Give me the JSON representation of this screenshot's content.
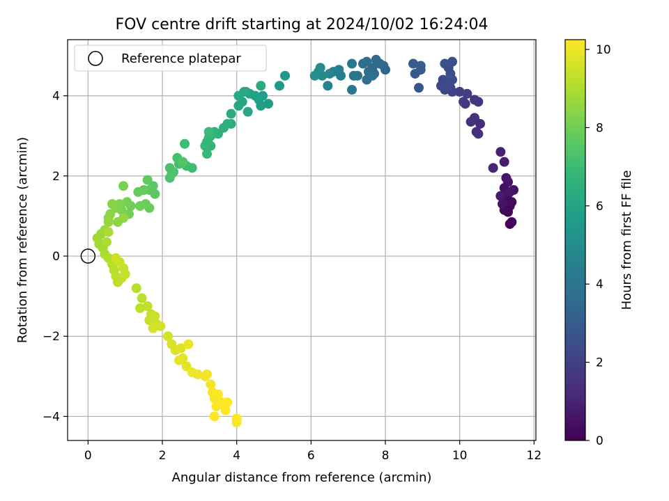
{
  "chart_data": {
    "type": "scatter",
    "title": "FOV centre drift starting at 2024/10/02 16:24:04",
    "xlabel": "Angular distance from reference (arcmin)",
    "ylabel": "Rotation from reference (arcmin)",
    "xlim": [
      -0.55,
      12.05
    ],
    "ylim": [
      -4.6,
      5.4
    ],
    "xticks": [
      "0",
      "2",
      "4",
      "6",
      "8",
      "10",
      "12"
    ],
    "yticks": [
      "−4",
      "−2",
      "0",
      "2",
      "4"
    ],
    "grid": true,
    "legend": {
      "position": "top-left",
      "entries": [
        "Reference platepar"
      ]
    },
    "reference_point": {
      "x": 0,
      "y": 0,
      "label": "Reference platepar"
    },
    "colorbar": {
      "label": "Hours from first FF file",
      "colormap": "viridis",
      "range": [
        0,
        10.25
      ],
      "ticks": [
        "0",
        "2",
        "4",
        "6",
        "8",
        "10"
      ]
    },
    "colormap_stops": [
      "#440154",
      "#482878",
      "#3e4989",
      "#31688e",
      "#26828e",
      "#1f9e89",
      "#35b779",
      "#6ece58",
      "#b5de2b",
      "#fde725"
    ],
    "points": [
      [
        11.35,
        0.8,
        0.0
      ],
      [
        11.4,
        0.85,
        0.05
      ],
      [
        11.3,
        1.1,
        0.1
      ],
      [
        11.35,
        1.25,
        0.15
      ],
      [
        11.2,
        1.15,
        0.2
      ],
      [
        11.4,
        1.35,
        0.25
      ],
      [
        11.25,
        1.45,
        0.3
      ],
      [
        11.3,
        1.55,
        0.35
      ],
      [
        11.2,
        1.7,
        0.4
      ],
      [
        11.45,
        1.65,
        0.45
      ],
      [
        11.3,
        1.85,
        0.5
      ],
      [
        11.15,
        1.3,
        0.55
      ],
      [
        11.25,
        1.95,
        0.6
      ],
      [
        11.35,
        1.6,
        0.65
      ],
      [
        11.1,
        1.5,
        0.7
      ],
      [
        11.2,
        2.35,
        0.85
      ],
      [
        11.1,
        2.6,
        0.95
      ],
      [
        10.9,
        2.2,
        1.05
      ],
      [
        10.55,
        3.3,
        1.3
      ],
      [
        10.45,
        3.1,
        1.35
      ],
      [
        10.5,
        3.05,
        1.4
      ],
      [
        10.4,
        3.45,
        1.45
      ],
      [
        10.3,
        3.35,
        1.5
      ],
      [
        10.5,
        3.85,
        1.6
      ],
      [
        10.4,
        3.9,
        1.65
      ],
      [
        10.1,
        3.85,
        1.75
      ],
      [
        10.15,
        3.8,
        1.8
      ],
      [
        10.2,
        4.05,
        1.85
      ],
      [
        10.0,
        4.1,
        1.9
      ],
      [
        9.8,
        4.1,
        2.05
      ],
      [
        9.75,
        4.2,
        2.1
      ],
      [
        9.6,
        4.15,
        2.15
      ],
      [
        9.5,
        4.25,
        2.2
      ],
      [
        9.55,
        4.4,
        2.25
      ],
      [
        9.65,
        4.25,
        2.3
      ],
      [
        9.8,
        4.4,
        2.35
      ],
      [
        9.75,
        4.55,
        2.4
      ],
      [
        9.7,
        4.7,
        2.45
      ],
      [
        9.6,
        4.8,
        2.5
      ],
      [
        9.8,
        4.85,
        2.55
      ],
      [
        8.9,
        4.2,
        2.75
      ],
      [
        8.95,
        4.65,
        2.85
      ],
      [
        8.8,
        4.55,
        2.9
      ],
      [
        8.75,
        4.8,
        2.95
      ],
      [
        8.95,
        4.75,
        3.0
      ],
      [
        8.0,
        4.65,
        3.3
      ],
      [
        7.95,
        4.75,
        3.35
      ],
      [
        7.85,
        4.8,
        3.4
      ],
      [
        7.75,
        4.9,
        3.45
      ],
      [
        7.65,
        4.7,
        3.5
      ],
      [
        7.7,
        4.55,
        3.55
      ],
      [
        7.55,
        4.6,
        3.6
      ],
      [
        7.5,
        4.85,
        3.65
      ],
      [
        7.4,
        4.8,
        3.7
      ],
      [
        7.5,
        4.4,
        3.75
      ],
      [
        7.65,
        4.5,
        3.8
      ],
      [
        7.25,
        4.5,
        3.95
      ],
      [
        7.15,
        4.5,
        4.0
      ],
      [
        7.1,
        4.8,
        4.1
      ],
      [
        7.1,
        4.15,
        4.2
      ],
      [
        6.8,
        4.5,
        4.35
      ],
      [
        6.75,
        4.65,
        4.45
      ],
      [
        6.6,
        4.6,
        4.55
      ],
      [
        6.45,
        4.25,
        4.65
      ],
      [
        6.5,
        4.55,
        4.75
      ],
      [
        6.3,
        4.5,
        4.85
      ],
      [
        6.25,
        4.7,
        4.95
      ],
      [
        6.2,
        4.6,
        5.05
      ],
      [
        6.1,
        4.5,
        5.15
      ],
      [
        5.3,
        4.5,
        5.45
      ],
      [
        5.15,
        4.25,
        5.55
      ],
      [
        4.85,
        3.8,
        5.65
      ],
      [
        4.7,
        4.0,
        5.7
      ],
      [
        4.65,
        3.75,
        5.75
      ],
      [
        4.6,
        3.9,
        5.8
      ],
      [
        4.5,
        4.0,
        5.85
      ],
      [
        4.35,
        4.05,
        5.9
      ],
      [
        4.25,
        4.1,
        5.95
      ],
      [
        4.15,
        3.85,
        6.0
      ],
      [
        4.3,
        3.6,
        6.05
      ],
      [
        4.05,
        3.75,
        6.1
      ],
      [
        4.05,
        4.0,
        6.15
      ],
      [
        4.2,
        4.1,
        6.2
      ],
      [
        4.65,
        4.25,
        6.25
      ],
      [
        3.85,
        3.55,
        6.3
      ],
      [
        3.85,
        3.3,
        6.4
      ],
      [
        3.75,
        3.3,
        6.45
      ],
      [
        3.65,
        3.2,
        6.5
      ],
      [
        3.5,
        3.05,
        6.55
      ],
      [
        3.4,
        3.1,
        6.6
      ],
      [
        3.3,
        3.0,
        6.65
      ],
      [
        3.25,
        2.95,
        6.7
      ],
      [
        3.3,
        2.75,
        6.75
      ],
      [
        3.2,
        2.85,
        6.8
      ],
      [
        3.15,
        2.75,
        6.85
      ],
      [
        3.2,
        2.55,
        6.9
      ],
      [
        3.25,
        3.1,
        6.95
      ],
      [
        2.6,
        2.8,
        7.0
      ],
      [
        2.8,
        2.2,
        7.05
      ],
      [
        2.65,
        2.25,
        7.1
      ],
      [
        2.45,
        2.3,
        7.15
      ],
      [
        2.4,
        2.45,
        7.2
      ],
      [
        2.3,
        2.1,
        7.25
      ],
      [
        2.2,
        2.2,
        7.3
      ],
      [
        2.25,
        2.05,
        7.35
      ],
      [
        2.2,
        1.95,
        7.4
      ],
      [
        2.55,
        2.35,
        7.45
      ],
      [
        1.75,
        1.75,
        7.55
      ],
      [
        1.8,
        1.55,
        7.6
      ],
      [
        1.65,
        1.65,
        7.65
      ],
      [
        1.6,
        1.9,
        7.7
      ],
      [
        1.5,
        1.65,
        7.75
      ],
      [
        1.35,
        1.6,
        7.8
      ],
      [
        1.65,
        1.2,
        7.85
      ],
      [
        1.55,
        1.3,
        7.9
      ],
      [
        1.4,
        1.25,
        7.95
      ],
      [
        1.15,
        1.25,
        8.0
      ],
      [
        1.1,
        1.05,
        8.05
      ],
      [
        1.05,
        1.35,
        8.1
      ],
      [
        0.95,
        1.75,
        8.15
      ],
      [
        0.9,
        1.15,
        8.2
      ],
      [
        0.85,
        1.3,
        8.25
      ],
      [
        0.75,
        1.2,
        8.3
      ],
      [
        0.65,
        1.3,
        8.35
      ],
      [
        0.6,
        1.05,
        8.4
      ],
      [
        0.55,
        0.95,
        8.45
      ],
      [
        0.8,
        0.85,
        8.5
      ],
      [
        0.95,
        0.95,
        8.55
      ],
      [
        0.55,
        0.85,
        8.6
      ],
      [
        0.45,
        0.65,
        8.65
      ],
      [
        0.35,
        0.55,
        8.7
      ],
      [
        0.25,
        0.45,
        8.75
      ],
      [
        0.3,
        0.3,
        8.8
      ],
      [
        0.4,
        0.2,
        8.85
      ],
      [
        0.45,
        0.05,
        8.9
      ],
      [
        0.55,
        0.6,
        8.95
      ],
      [
        0.5,
        0.35,
        9.0
      ],
      [
        0.55,
        -0.05,
        9.05
      ],
      [
        0.65,
        -0.2,
        9.1
      ],
      [
        0.7,
        -0.35,
        9.15
      ],
      [
        0.75,
        -0.5,
        9.2
      ],
      [
        0.8,
        -0.65,
        9.25
      ],
      [
        0.9,
        -0.55,
        9.3
      ],
      [
        1.0,
        -0.45,
        9.35
      ],
      [
        0.95,
        -0.3,
        9.4
      ],
      [
        0.85,
        -0.15,
        9.45
      ],
      [
        0.75,
        -0.05,
        9.5
      ],
      [
        1.3,
        -0.8,
        9.15
      ],
      [
        1.45,
        -1.05,
        9.2
      ],
      [
        1.4,
        -1.3,
        9.25
      ],
      [
        1.6,
        -1.25,
        9.3
      ],
      [
        1.7,
        -1.45,
        9.35
      ],
      [
        1.65,
        -1.6,
        9.4
      ],
      [
        1.8,
        -1.5,
        9.45
      ],
      [
        1.85,
        -1.7,
        9.5
      ],
      [
        1.95,
        -1.75,
        9.55
      ],
      [
        1.75,
        -1.8,
        9.6
      ],
      [
        2.15,
        -2.0,
        9.6
      ],
      [
        2.25,
        -2.2,
        9.65
      ],
      [
        2.35,
        -2.35,
        9.7
      ],
      [
        2.5,
        -2.3,
        9.75
      ],
      [
        2.55,
        -2.55,
        9.8
      ],
      [
        2.65,
        -2.75,
        9.85
      ],
      [
        2.45,
        -2.6,
        9.9
      ],
      [
        2.7,
        -2.2,
        9.95
      ],
      [
        2.8,
        -2.9,
        10.0
      ],
      [
        2.95,
        -2.95,
        10.0
      ],
      [
        3.15,
        -3.0,
        10.05
      ],
      [
        3.2,
        -2.95,
        10.1
      ],
      [
        3.3,
        -3.2,
        10.1
      ],
      [
        3.35,
        -3.4,
        10.15
      ],
      [
        3.4,
        -3.55,
        10.15
      ],
      [
        3.5,
        -3.45,
        10.2
      ],
      [
        3.55,
        -3.7,
        10.2
      ],
      [
        3.6,
        -3.65,
        10.2
      ],
      [
        3.45,
        -3.75,
        10.25
      ],
      [
        3.7,
        -3.85,
        10.25
      ],
      [
        3.4,
        -4.0,
        10.25
      ],
      [
        4.0,
        -4.05,
        10.25
      ],
      [
        4.0,
        -4.15,
        10.25
      ],
      [
        3.75,
        -3.65,
        10.25
      ]
    ]
  }
}
